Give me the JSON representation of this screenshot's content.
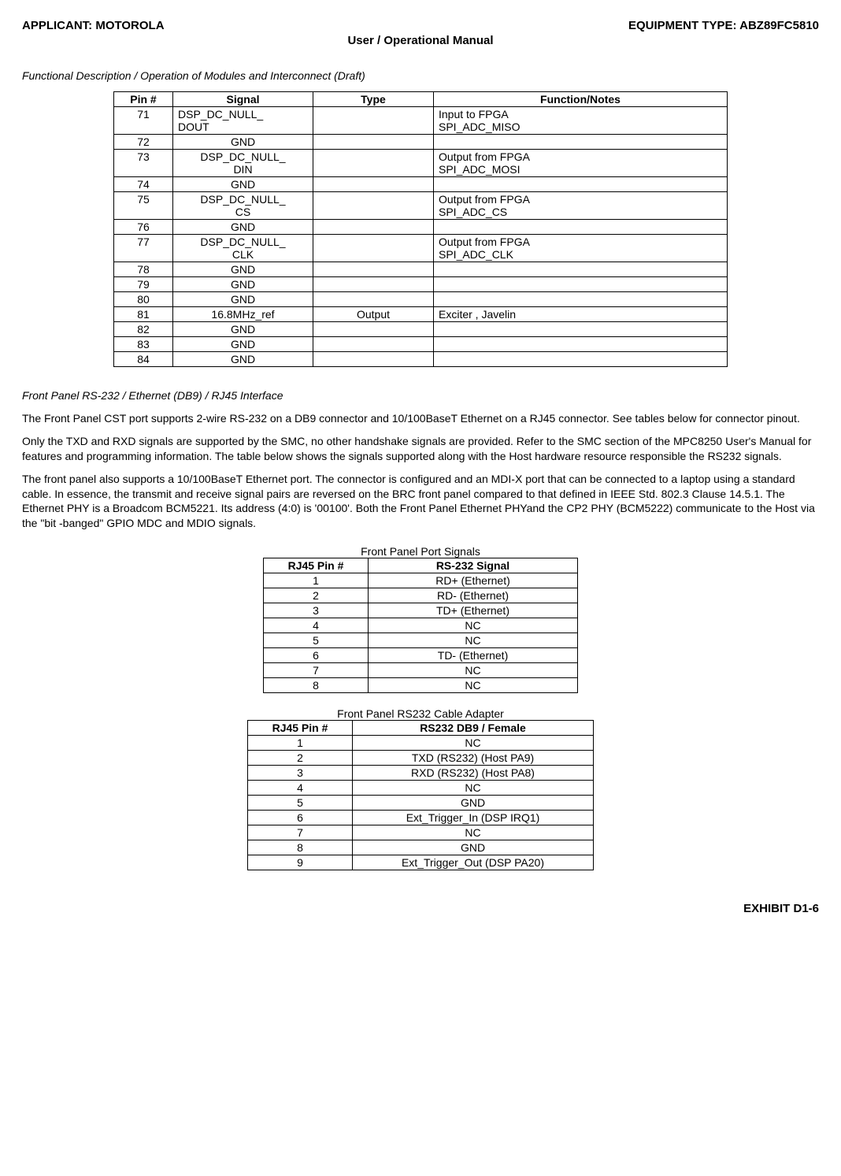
{
  "header": {
    "applicant_label": "APPLICANT: MOTOROLA",
    "equipment_label": "EQUIPMENT TYPE: ABZ89FC5810",
    "manual_title": "User / Operational Manual"
  },
  "section_title_1": "Functional Description / Operation of Modules and Interconnect (Draft)",
  "main_table": {
    "headers": {
      "pin": "Pin #",
      "signal": "Signal",
      "type": "Type",
      "func": "Function/Notes"
    },
    "rows": [
      {
        "pin": "71",
        "signal": "DSP_DC_NULL_\nDOUT",
        "signal_align": "left",
        "type": "",
        "func": "Input to FPGA\nSPI_ADC_MISO"
      },
      {
        "pin": "72",
        "signal": "GND",
        "type": "",
        "func": ""
      },
      {
        "pin": "73",
        "signal": "DSP_DC_NULL_\nDIN",
        "type": "",
        "func": "Output from FPGA\nSPI_ADC_MOSI"
      },
      {
        "pin": "74",
        "signal": "GND",
        "type": "",
        "func": ""
      },
      {
        "pin": "75",
        "signal": "DSP_DC_NULL_\nCS",
        "type": "",
        "func": "Output from FPGA\nSPI_ADC_CS"
      },
      {
        "pin": "76",
        "signal": "GND",
        "type": "",
        "func": ""
      },
      {
        "pin": "77",
        "signal": "DSP_DC_NULL_\nCLK",
        "type": "",
        "func": "Output from FPGA\nSPI_ADC_CLK"
      },
      {
        "pin": "78",
        "signal": "GND",
        "type": "",
        "func": ""
      },
      {
        "pin": "79",
        "signal": "GND",
        "type": "",
        "func": ""
      },
      {
        "pin": "80",
        "signal": "GND",
        "type": "",
        "func": ""
      },
      {
        "pin": "81",
        "signal": "16.8MHz_ref",
        "type": "Output",
        "func": "Exciter , Javelin"
      },
      {
        "pin": "82",
        "signal": "GND",
        "type": "",
        "func": ""
      },
      {
        "pin": "83",
        "signal": "GND",
        "type": "",
        "func": ""
      },
      {
        "pin": "84",
        "signal": "GND",
        "type": "",
        "func": ""
      }
    ]
  },
  "section_title_2": "Front Panel RS-232 / Ethernet (DB9) / RJ45 Interface",
  "paragraphs": {
    "p1": "The Front Panel CST port supports 2-wire RS-232 on a DB9 connector and 10/100BaseT Ethernet on a RJ45 connector.  See tables below for connector pinout.",
    "p2": "Only the TXD and RXD signals are supported by the SMC, no other handshake signals are provided.  Refer to the SMC section of the MPC8250 User's Manual for features and programming information.  The table below shows the signals supported along with the Host hardware resource responsible the RS232 signals.",
    "p3": "The front panel also supports a 10/100BaseT Ethernet port.  The connector is configured and an MDI-X port that can be connected to a laptop using a standard cable.  In essence, the transmit and receive signal pairs are reversed on the BRC front panel compared to that defined in IEEE Std. 802.3 Clause 14.5.1.  The Ethernet PHY is a Broadcom BCM5221.  Its address (4:0) is '00100'.  Both the Front Panel Ethernet PHYand the CP2 PHY (BCM5222) communicate to the Host via the \"bit -banged\" GPIO MDC and MDIO signals."
  },
  "sig_table": {
    "caption": "Front Panel Port Signals",
    "headers": {
      "pin": "RJ45 Pin #",
      "sig": "RS-232 Signal"
    },
    "rows": [
      {
        "pin": "1",
        "sig": "RD+ (Ethernet)"
      },
      {
        "pin": "2",
        "sig": "RD- (Ethernet)"
      },
      {
        "pin": "3",
        "sig": "TD+ (Ethernet)"
      },
      {
        "pin": "4",
        "sig": "NC"
      },
      {
        "pin": "5",
        "sig": "NC"
      },
      {
        "pin": "6",
        "sig": "TD- (Ethernet)"
      },
      {
        "pin": "7",
        "sig": "NC"
      },
      {
        "pin": "8",
        "sig": "NC"
      }
    ]
  },
  "adapter_table": {
    "caption": "Front Panel RS232 Cable Adapter",
    "headers": {
      "pin": "RJ45 Pin #",
      "sig": "RS232 DB9 / Female"
    },
    "rows": [
      {
        "pin": "1",
        "sig": "NC"
      },
      {
        "pin": "2",
        "sig": "TXD (RS232) (Host PA9)"
      },
      {
        "pin": "3",
        "sig": "RXD (RS232) (Host PA8)"
      },
      {
        "pin": "4",
        "sig": "NC"
      },
      {
        "pin": "5",
        "sig": "GND"
      },
      {
        "pin": "6",
        "sig": "Ext_Trigger_In (DSP IRQ1)"
      },
      {
        "pin": "7",
        "sig": "NC"
      },
      {
        "pin": "8",
        "sig": "GND"
      },
      {
        "pin": "9",
        "sig": "Ext_Trigger_Out (DSP PA20)"
      }
    ]
  },
  "footer": "EXHIBIT D1-6"
}
